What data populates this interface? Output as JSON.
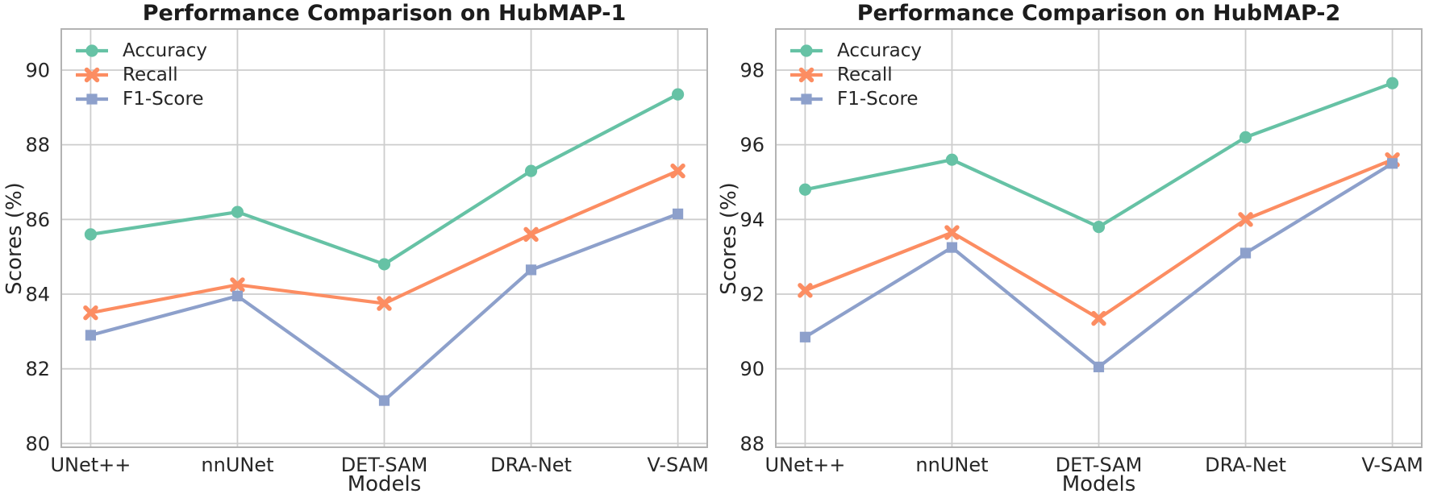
{
  "page": {
    "background": "#ffffff",
    "text_color": "#262626",
    "title_color": "#1c1c1c",
    "grid_color": "#cdcdcd",
    "spine_color": "#b3b3b3"
  },
  "chart_data": [
    {
      "type": "line",
      "title": "Performance Comparison on HubMAP-1",
      "xlabel": "Models",
      "ylabel": "Scores (%)",
      "categories": [
        "UNet++",
        "nnUNet",
        "DET-SAM",
        "DRA-Net",
        "V-SAM"
      ],
      "yticks": [
        80,
        82,
        84,
        86,
        88,
        90
      ],
      "ylim": [
        79.9,
        91.1
      ],
      "grid": true,
      "legend_position": "upper left",
      "series": [
        {
          "name": "Accuracy",
          "marker": "circle",
          "color": "#66c2a5",
          "values": [
            85.6,
            86.2,
            84.8,
            87.3,
            89.35
          ]
        },
        {
          "name": "Recall",
          "marker": "x",
          "color": "#fc8d62",
          "values": [
            83.5,
            84.25,
            83.75,
            85.6,
            87.3
          ]
        },
        {
          "name": "F1-Score",
          "marker": "square",
          "color": "#8da0cb",
          "values": [
            82.9,
            83.95,
            81.15,
            84.65,
            86.15
          ]
        }
      ]
    },
    {
      "type": "line",
      "title": "Performance Comparison on HubMAP-2",
      "xlabel": "Models",
      "ylabel": "Scores (%)",
      "categories": [
        "UNet++",
        "nnUNet",
        "DET-SAM",
        "DRA-Net",
        "V-SAM"
      ],
      "yticks": [
        88,
        90,
        92,
        94,
        96,
        98
      ],
      "ylim": [
        87.9,
        99.1
      ],
      "grid": true,
      "legend_position": "upper left",
      "series": [
        {
          "name": "Accuracy",
          "marker": "circle",
          "color": "#66c2a5",
          "values": [
            94.8,
            95.6,
            93.8,
            96.2,
            97.65
          ]
        },
        {
          "name": "Recall",
          "marker": "x",
          "color": "#fc8d62",
          "values": [
            92.1,
            93.65,
            91.35,
            94.0,
            95.6
          ]
        },
        {
          "name": "F1-Score",
          "marker": "square",
          "color": "#8da0cb",
          "values": [
            90.85,
            93.25,
            90.05,
            93.1,
            95.5
          ]
        }
      ]
    }
  ]
}
